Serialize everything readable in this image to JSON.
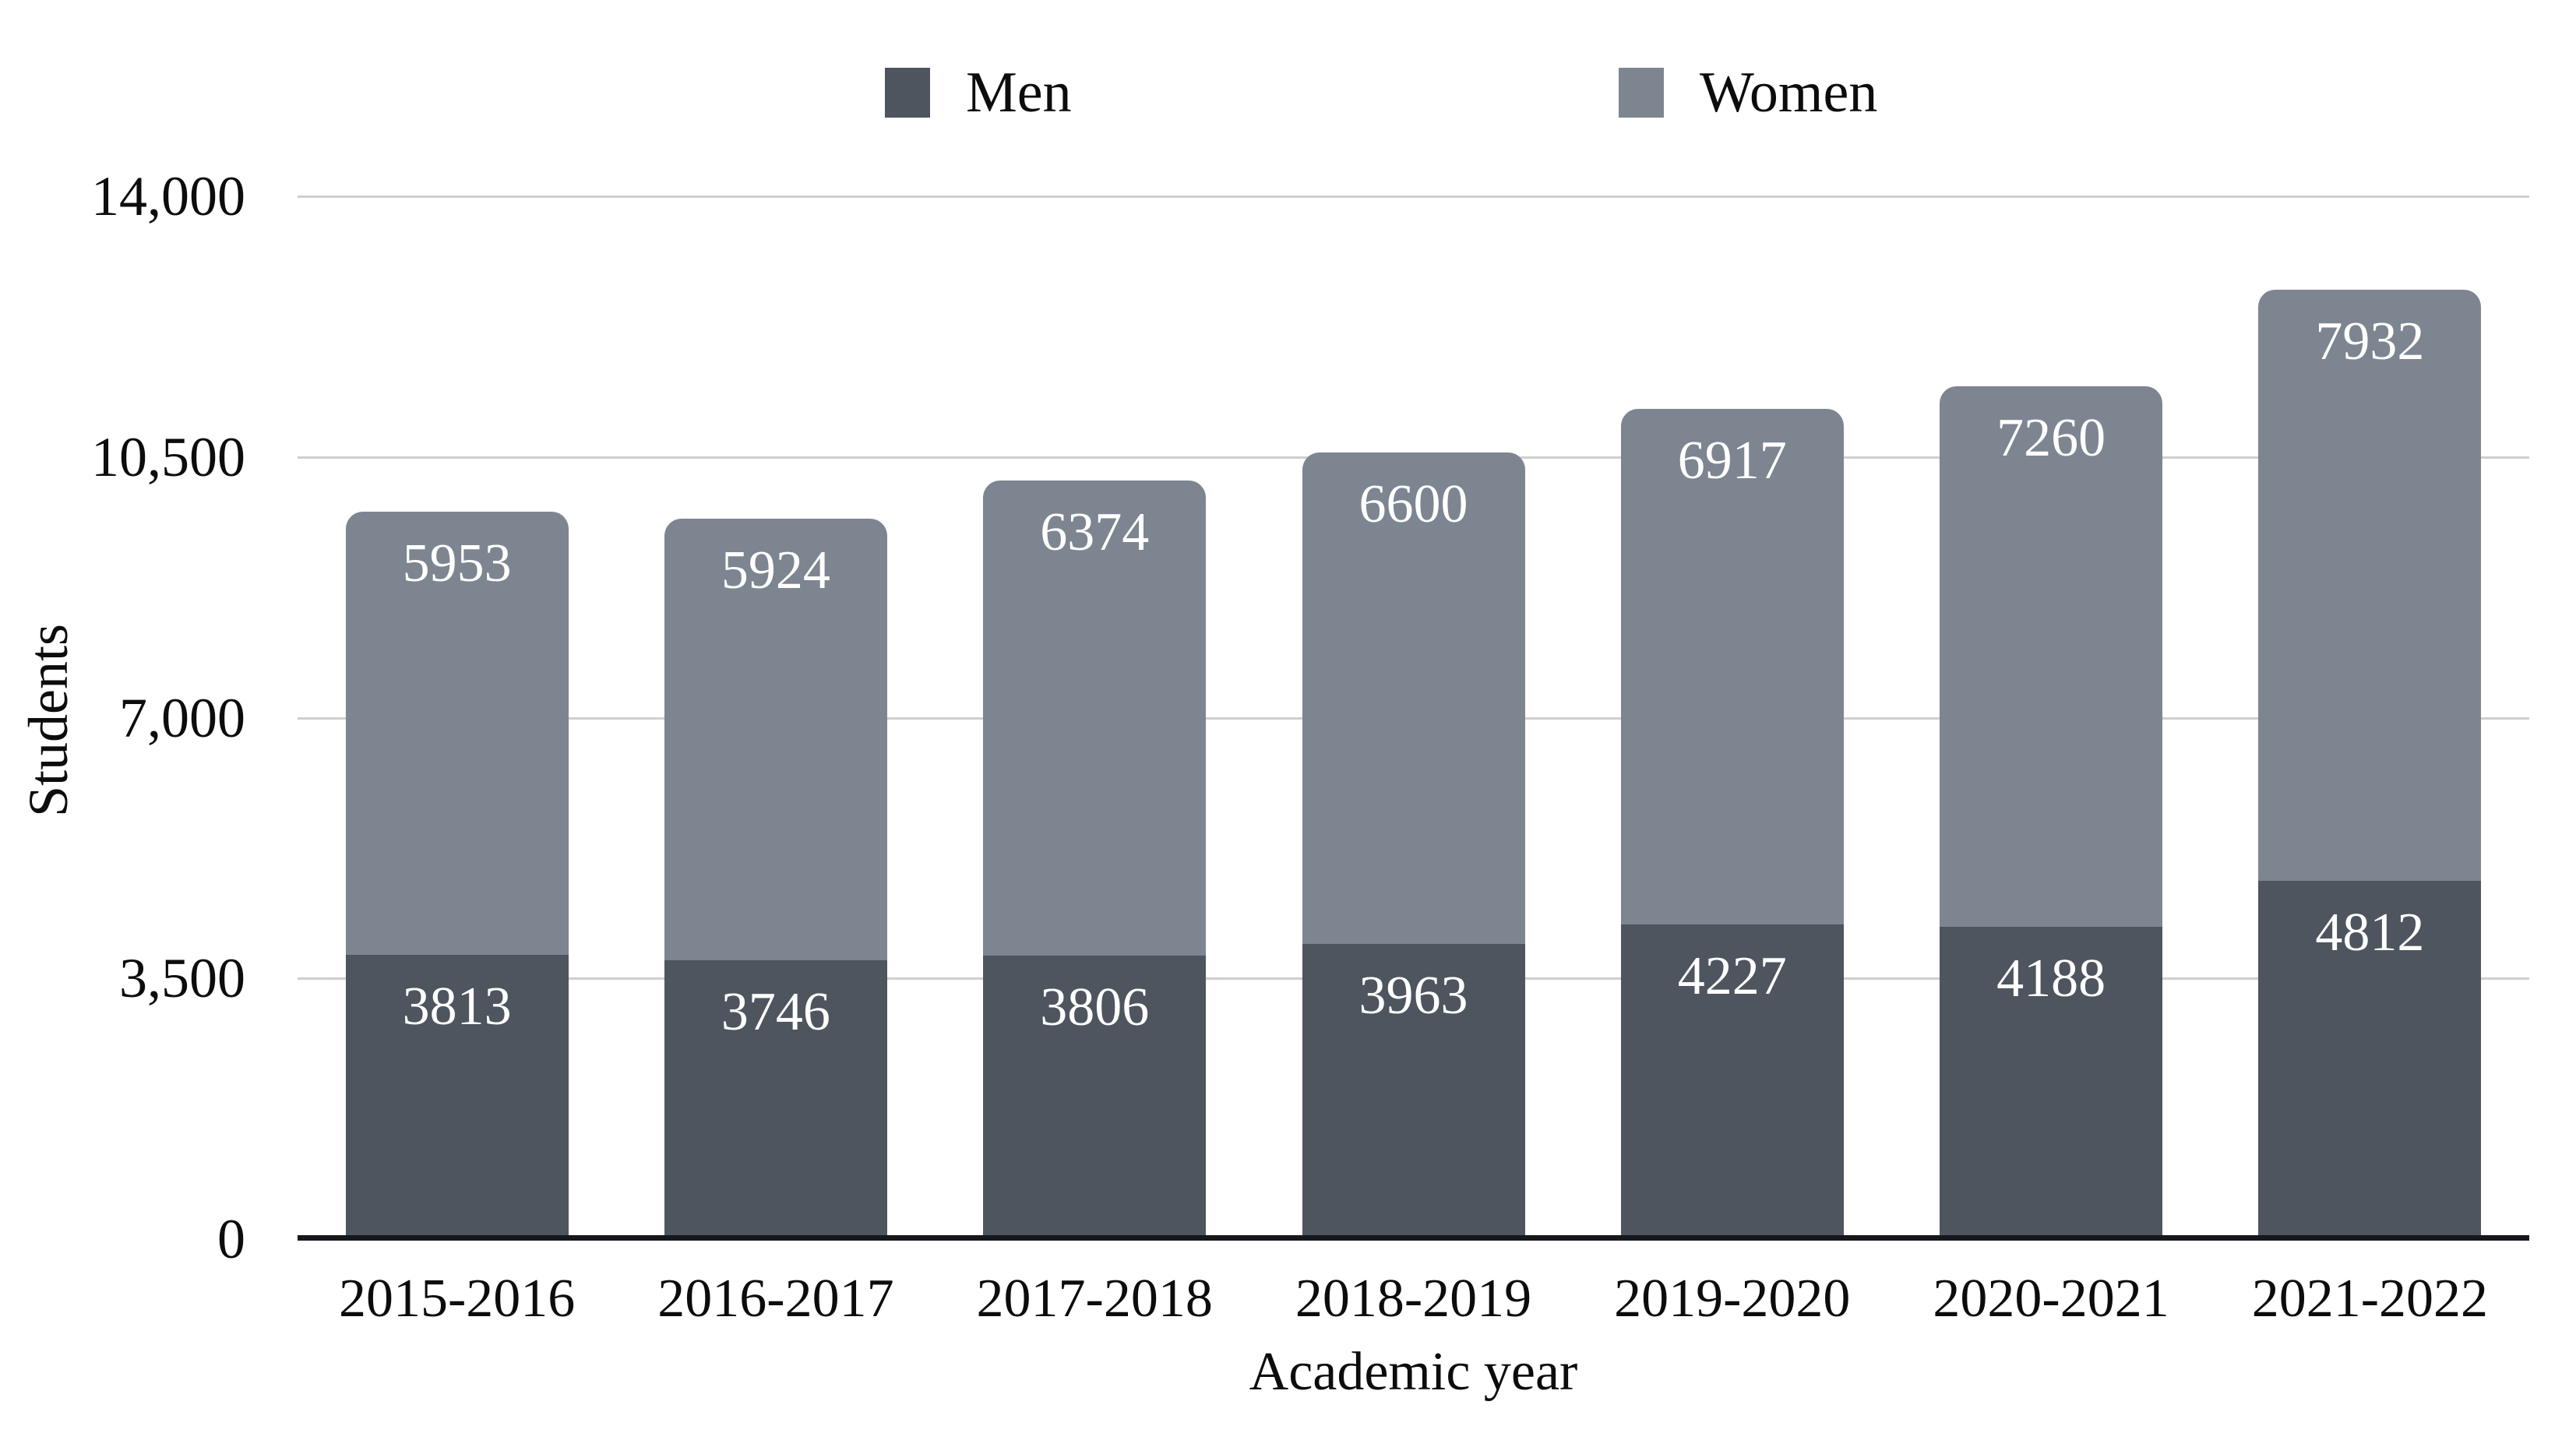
{
  "chart_data": {
    "type": "bar",
    "stacked": true,
    "categories": [
      "2015-2016",
      "2016-2017",
      "2017-2018",
      "2018-2019",
      "2019-2020",
      "2020-2021",
      "2021-2022"
    ],
    "series": [
      {
        "name": "Men",
        "color": "#4e555f",
        "values": [
          3813,
          3746,
          3806,
          3963,
          4227,
          4188,
          4812
        ]
      },
      {
        "name": "Women",
        "color": "#7d8591",
        "values": [
          5953,
          5924,
          6374,
          6600,
          6917,
          7260,
          7932
        ]
      }
    ],
    "xlabel": "Academic year",
    "ylabel": "Students",
    "ylim": [
      0,
      14000
    ],
    "yticks": [
      {
        "value": 0,
        "label": "0"
      },
      {
        "value": 3500,
        "label": "3,500"
      },
      {
        "value": 7000,
        "label": "7,000"
      },
      {
        "value": 10500,
        "label": "10,500"
      },
      {
        "value": 14000,
        "label": "14,000"
      }
    ],
    "grid": true,
    "legend_position": "top",
    "value_label_position": "inside-end",
    "value_label_color": "#ffffff"
  },
  "style_colors": {
    "background": "#ffffff",
    "gridline": "#cfcfcf",
    "axis_line": "#15181c",
    "text": "#0c0c0c"
  }
}
